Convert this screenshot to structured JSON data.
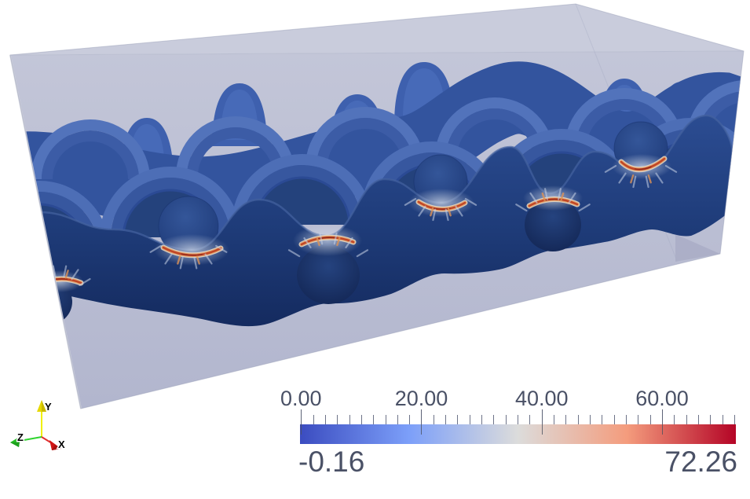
{
  "colorbar": {
    "tick_labels": [
      "0.00",
      "20.00",
      "40.00",
      "60.00"
    ],
    "tick_values": [
      0,
      20,
      40,
      60
    ],
    "minor_tick_step": 2,
    "minor_tick_max": 72,
    "range_min": -0.16,
    "range_max": 72.26,
    "min_label": "-0.16",
    "max_label": "72.26",
    "label_color": "#4a5166",
    "colormap_name": "cool-to-warm",
    "stops": [
      {
        "p": 0,
        "c": "#3b4cc0"
      },
      {
        "p": 0.25,
        "c": "#7c9ff9"
      },
      {
        "p": 0.5,
        "c": "#dcdcdb"
      },
      {
        "p": 0.75,
        "c": "#f49c7d"
      },
      {
        "p": 1,
        "c": "#b40426"
      }
    ]
  },
  "orientation_axes": {
    "x": {
      "label": "X",
      "color": "#cc1111"
    },
    "y": {
      "label": "Y",
      "color": "#e6e600"
    },
    "z": {
      "label": "Z",
      "color": "#22bb22"
    }
  },
  "scene_colors": {
    "box_top_face": "#c9ccdc",
    "box_front_face_top": "#c3c6d8",
    "box_front_face_bottom": "#b2b6ce",
    "yarn_dark_blue": "#1e3b78",
    "weave_blue": "#4d6eb6",
    "stress_red": "#c04526"
  }
}
